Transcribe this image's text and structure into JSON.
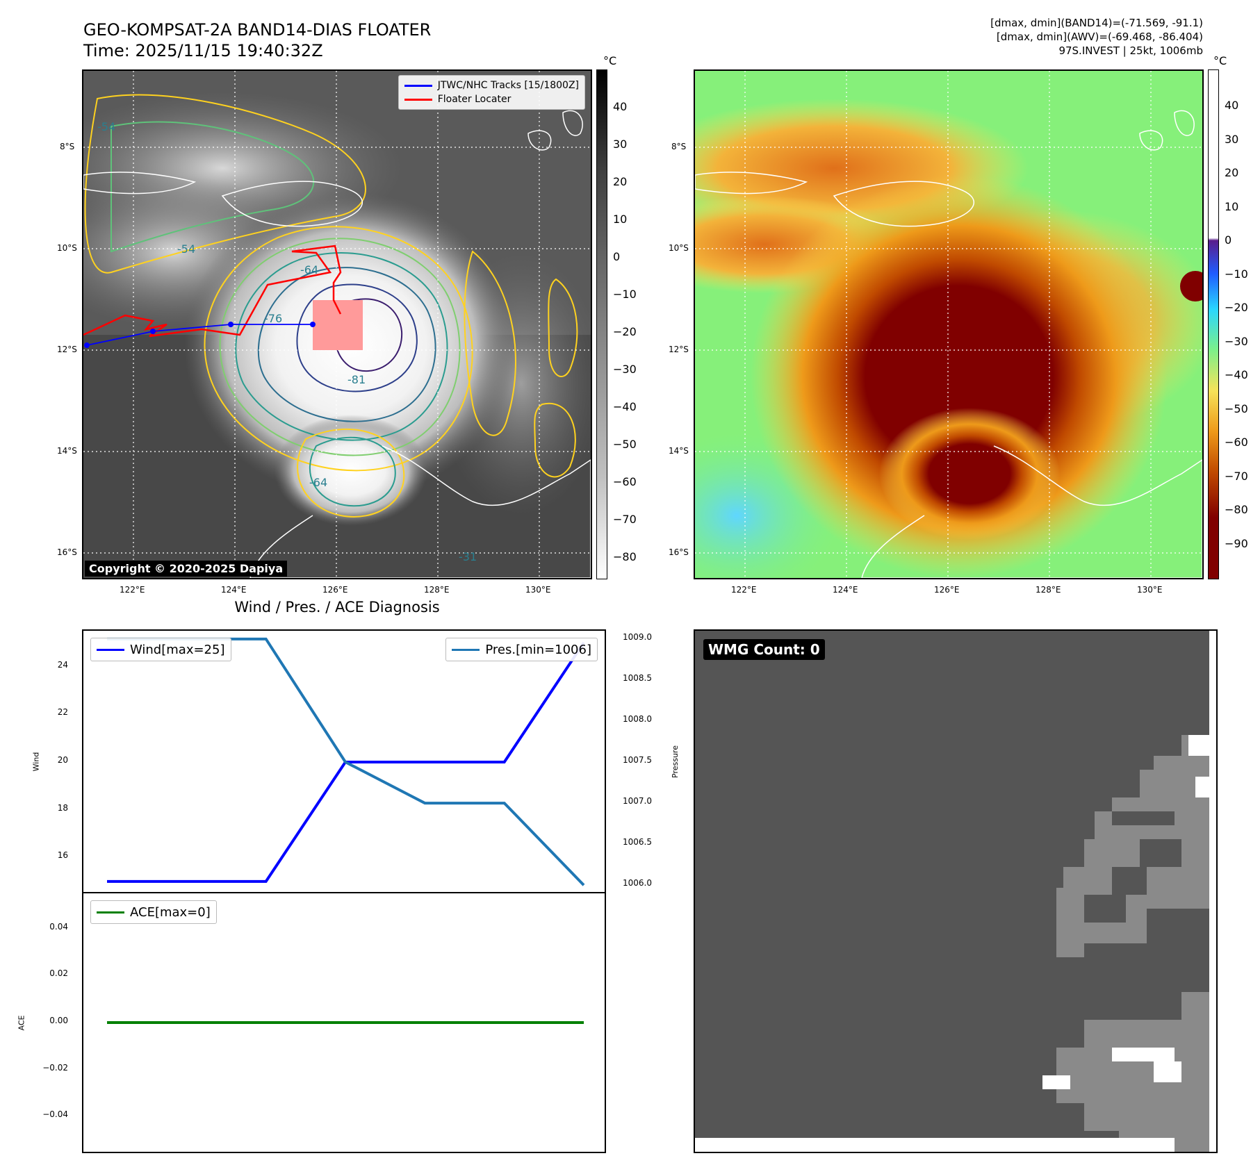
{
  "header": {
    "title_line1": "GEO-KOMPSAT-2A BAND14-DIAS FLOATER",
    "title_line2": "Time: 2025/11/15 19:40:32Z",
    "info_line1": "[dmax, dmin](BAND14)=(-71.569, -91.1)",
    "info_line2": "[dmax, dmin](AWV)=(-69.468, -86.404)",
    "info_line3": "97S.INVEST | 25kt, 1006mb"
  },
  "maps": {
    "lat_labels": [
      "8°S",
      "10°S",
      "12°S",
      "14°S",
      "16°S"
    ],
    "lon_labels": [
      "122°E",
      "124°E",
      "126°E",
      "128°E",
      "130°E"
    ],
    "copyright": "Copyright © 2020-2025 Dapiya",
    "legend": {
      "tracks": "JTWC/NHC Tracks [15/1800Z]",
      "floater": "Floater Locater"
    },
    "contour_labels": [
      "-54",
      "-54",
      "-64",
      "-76",
      "-81",
      "-64",
      "-31"
    ],
    "colorbar_ir": {
      "unit": "°C",
      "ticks": [
        "40",
        "30",
        "20",
        "10",
        "0",
        "−10",
        "−20",
        "−30",
        "−40",
        "−50",
        "−60",
        "−70",
        "−80"
      ]
    },
    "colorbar_awv": {
      "unit": "°C",
      "ticks": [
        "40",
        "30",
        "20",
        "10",
        "0",
        "−10",
        "−20",
        "−30",
        "−40",
        "−50",
        "−60",
        "−70",
        "−80",
        "−90"
      ]
    }
  },
  "diagnosis": {
    "title": "Wind / Pres. / ACE Diagnosis",
    "wind_ylabel": "Wind",
    "pres_ylabel": "Pressure",
    "ace_ylabel": "ACE",
    "wind_legend": "Wind[max=25]",
    "pres_legend": "Pres.[min=1006]",
    "ace_legend": "ACE[max=0]",
    "wind_ticks": [
      "24",
      "22",
      "20",
      "18",
      "16"
    ],
    "pres_ticks": [
      "1009.0",
      "1008.5",
      "1008.0",
      "1007.5",
      "1007.0",
      "1006.5",
      "1006.0"
    ],
    "ace_ticks": [
      "0.04",
      "0.02",
      "0.00",
      "−0.02",
      "−0.04"
    ]
  },
  "wmg": {
    "label": "WMG Count: 0"
  },
  "chart_data": [
    {
      "type": "line",
      "title": "Wind / Pres. / ACE Diagnosis",
      "x": [
        0,
        1,
        2,
        3,
        4,
        5,
        6
      ],
      "series": [
        {
          "name": "Wind[max=25]",
          "axis": "left",
          "color": "#0000ff",
          "values": [
            15,
            15,
            15,
            20,
            20,
            20,
            25
          ]
        },
        {
          "name": "Pres.[min=1006]",
          "axis": "right",
          "color": "#1f77b4",
          "values": [
            1009,
            1009,
            1009,
            1007.5,
            1007,
            1007,
            1006
          ]
        }
      ],
      "ylabel": "Wind",
      "y2label": "Pressure",
      "ylim": [
        14.5,
        25.5
      ],
      "y2lim": [
        1005.9,
        1009.1
      ]
    },
    {
      "type": "line",
      "x": [
        0,
        6
      ],
      "series": [
        {
          "name": "ACE[max=0]",
          "color": "#008000",
          "values": [
            0,
            0
          ]
        }
      ],
      "ylabel": "ACE",
      "ylim": [
        -0.055,
        0.055
      ]
    }
  ]
}
